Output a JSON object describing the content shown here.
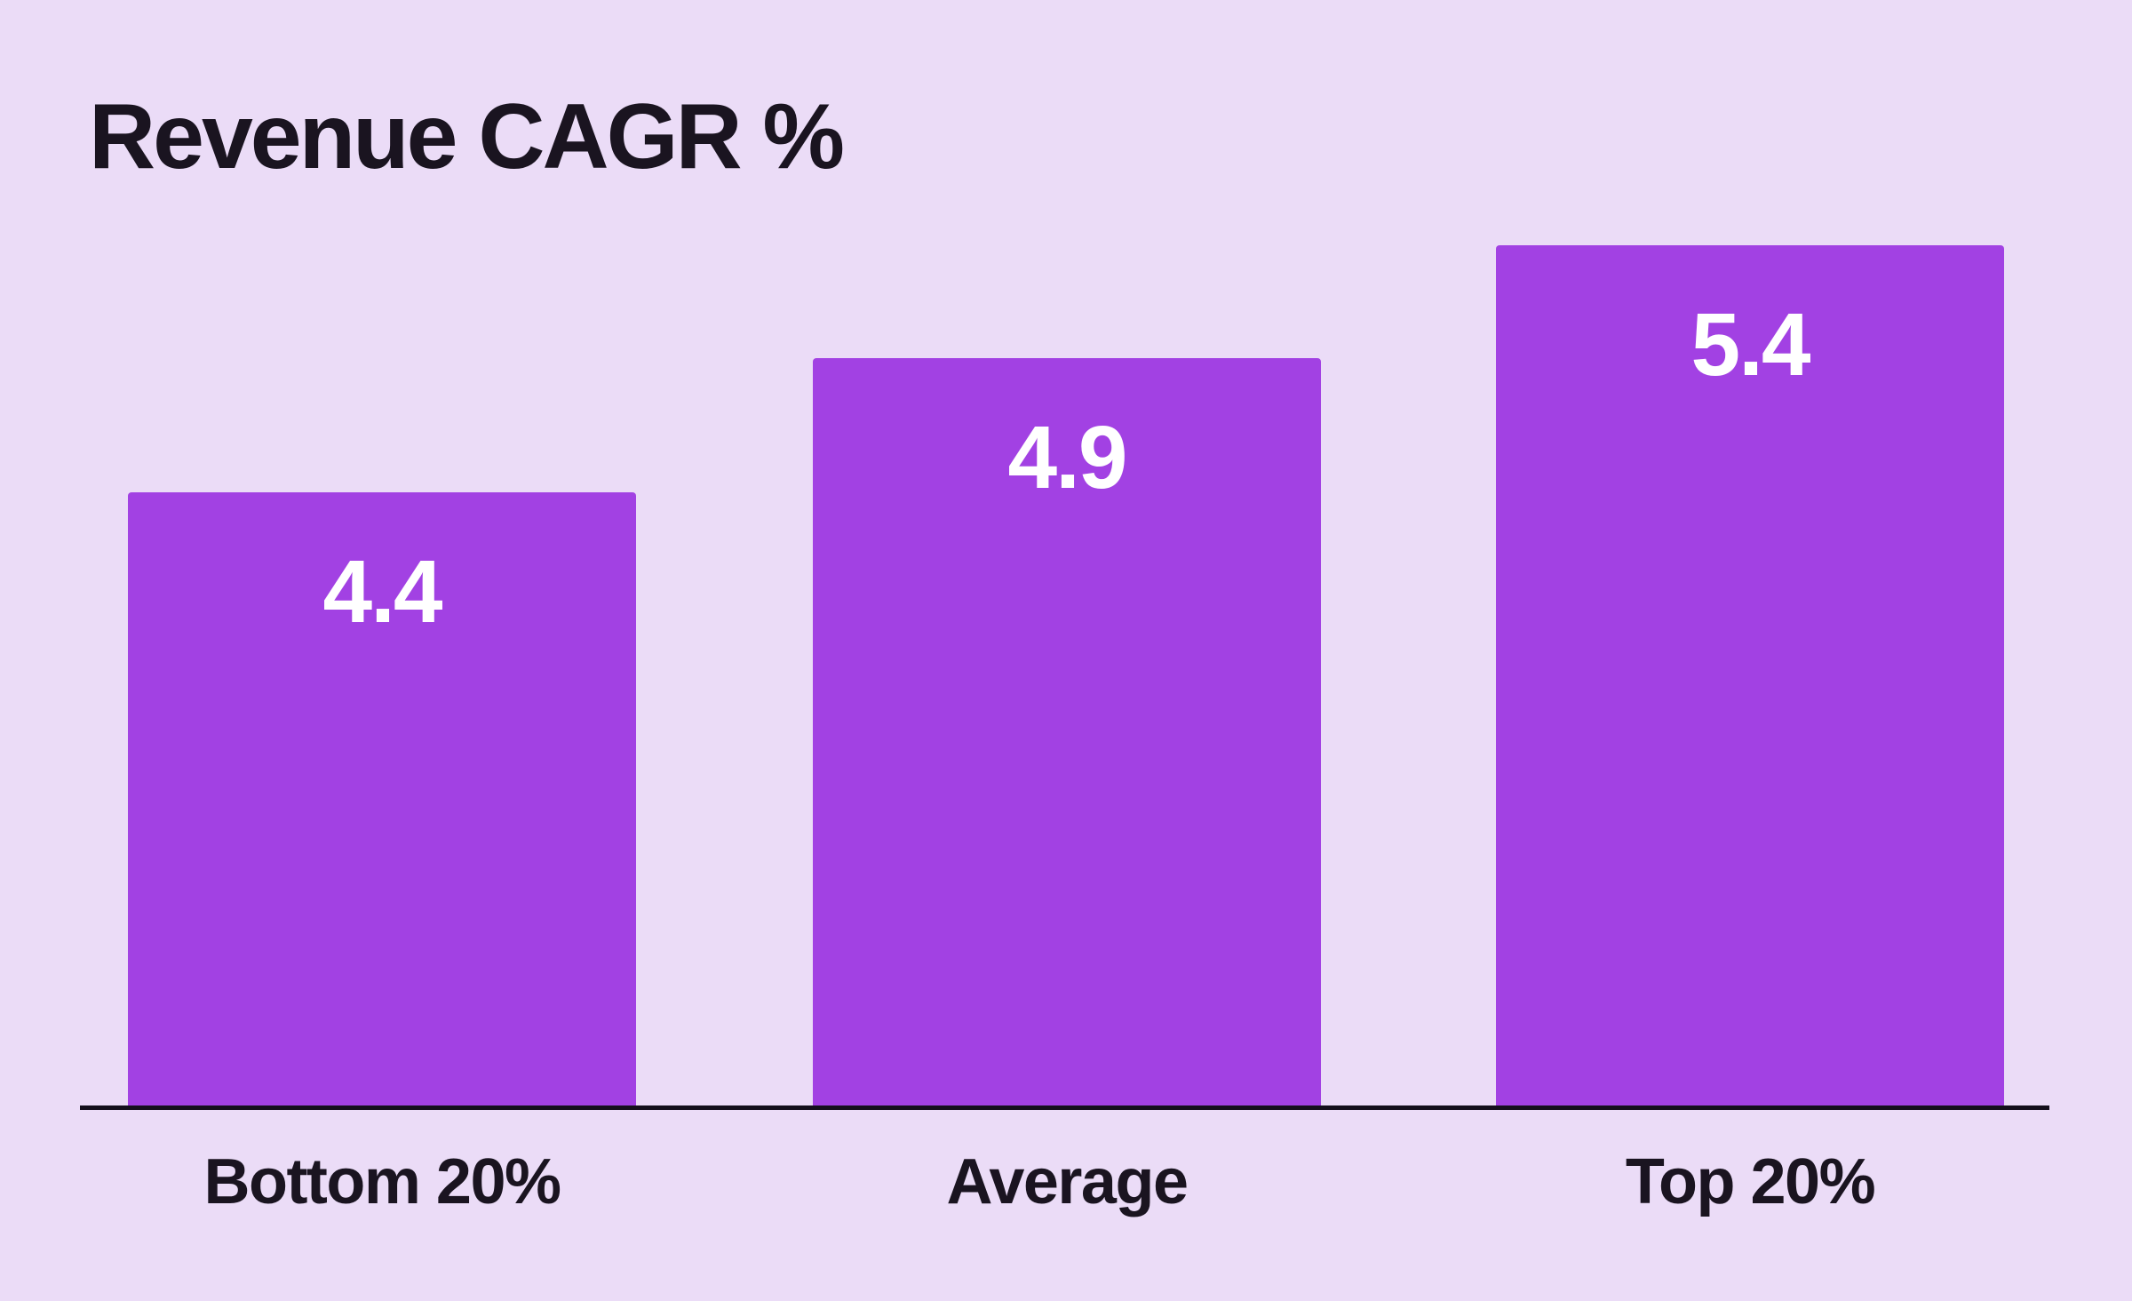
{
  "page": {
    "background_color": "#EBDCF7"
  },
  "chart_data": {
    "type": "bar",
    "title": "Revenue CAGR %",
    "categories": [
      "Bottom 20%",
      "Average",
      "Top 20%"
    ],
    "values": [
      4.4,
      4.9,
      5.4
    ],
    "xlabel": "",
    "ylabel": "",
    "grid": false,
    "legend": false,
    "value_label_position": "inside-top",
    "bar_color": "#A241E3",
    "value_label_color": "#FFFFFF",
    "category_label_color": "#1A1420",
    "title_color": "#1A1420",
    "axis_line_color": "#140F1C"
  }
}
